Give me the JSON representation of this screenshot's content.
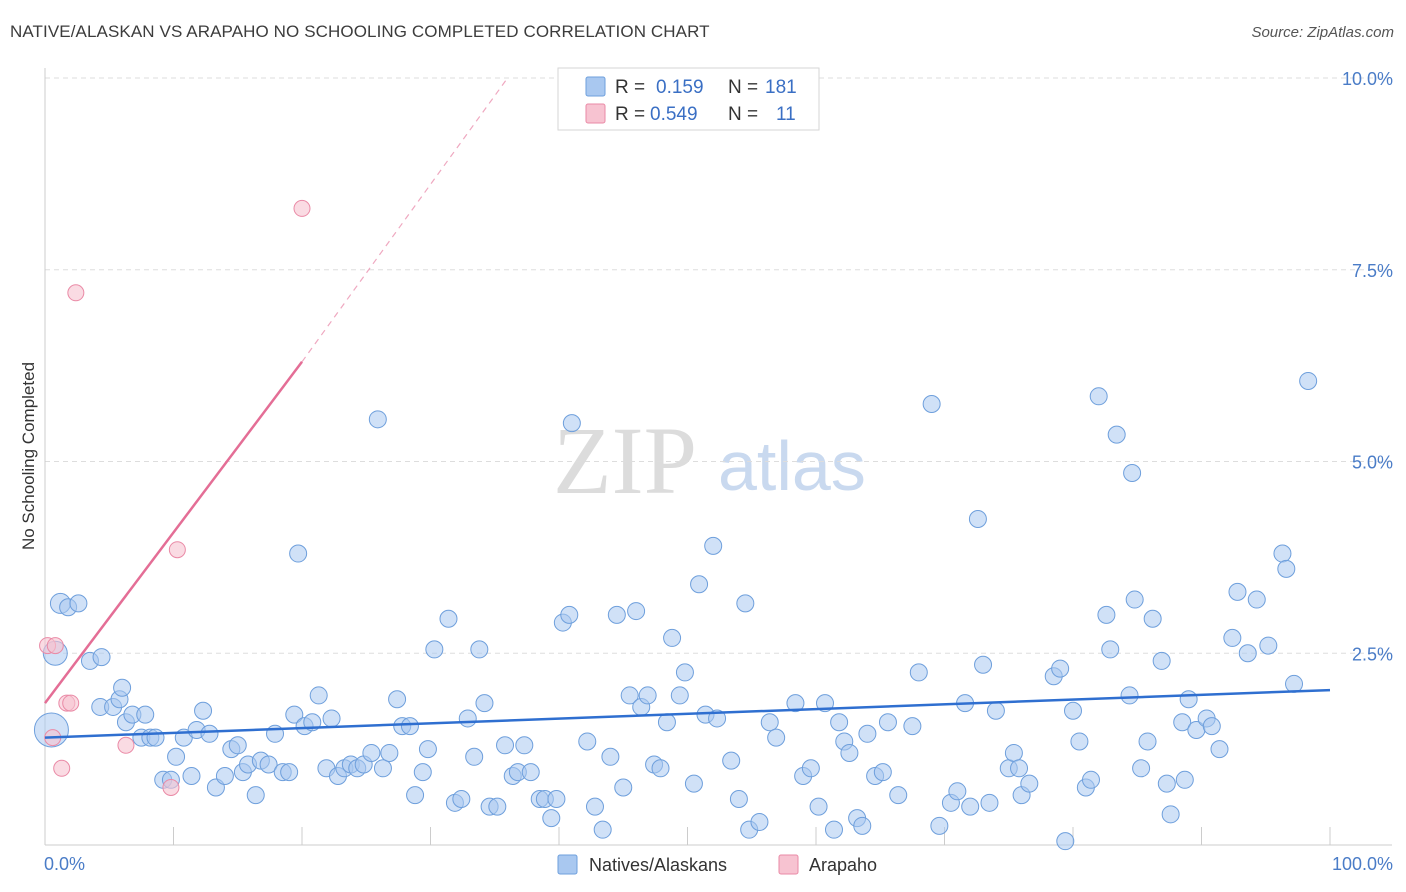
{
  "header": {
    "title": "NATIVE/ALASKAN VS ARAPAHO NO SCHOOLING COMPLETED CORRELATION CHART",
    "source": "Source: ZipAtlas.com"
  },
  "watermark": {
    "zip": "ZIP",
    "atlas": "atlas"
  },
  "legend": {
    "r_label": "R =",
    "n_label": "N =",
    "rows": [
      {
        "r": "0.159",
        "n": "181",
        "color": "#a9c8f0"
      },
      {
        "r": "0.549",
        "n": "11",
        "color": "#f7b9c9"
      }
    ]
  },
  "bottom_legend": [
    {
      "label": "Natives/Alaskans",
      "color": "#a9c8f0"
    },
    {
      "label": "Arapaho",
      "color": "#f7b9c9"
    }
  ],
  "colors": {
    "blue_fill": "#a9c8f0",
    "blue_stroke": "#6e9fdc",
    "blue_line": "#2f6fd0",
    "pink_fill": "#f7c3d1",
    "pink_stroke": "#ea8aa6",
    "pink_line": "#e46e96",
    "grid": "#dddddd",
    "tick_text": "#4a7cc7"
  },
  "chart_data": {
    "type": "scatter",
    "title": "NATIVE/ALASKAN VS ARAPAHO NO SCHOOLING COMPLETED CORRELATION CHART",
    "xlabel": "",
    "ylabel": "No Schooling Completed",
    "xlim": [
      0,
      100
    ],
    "ylim": [
      0,
      10
    ],
    "x_tick_labels": [
      "0.0%",
      "100.0%"
    ],
    "y_ticks": [
      2.5,
      5.0,
      7.5,
      10.0
    ],
    "y_tick_labels": [
      "2.5%",
      "5.0%",
      "7.5%",
      "10.0%"
    ],
    "grid": true,
    "series": [
      {
        "name": "Natives/Alaskans",
        "R": 0.159,
        "N": 181,
        "trend": {
          "x": [
            0,
            100
          ],
          "y": [
            1.4,
            2.02
          ]
        },
        "points": [
          [
            0.5,
            1.5
          ],
          [
            0.8,
            2.5
          ],
          [
            1.2,
            3.15
          ],
          [
            1.8,
            3.1
          ],
          [
            2.6,
            3.15
          ],
          [
            3.5,
            2.4
          ],
          [
            4.4,
            2.45
          ],
          [
            4.3,
            1.8
          ],
          [
            5.3,
            1.8
          ],
          [
            5.8,
            1.9
          ],
          [
            6.0,
            2.05
          ],
          [
            6.3,
            1.6
          ],
          [
            6.8,
            1.7
          ],
          [
            7.5,
            1.4
          ],
          [
            7.8,
            1.7
          ],
          [
            8.2,
            1.4
          ],
          [
            8.6,
            1.4
          ],
          [
            9.2,
            0.85
          ],
          [
            9.8,
            0.85
          ],
          [
            10.2,
            1.15
          ],
          [
            10.8,
            1.4
          ],
          [
            11.4,
            0.9
          ],
          [
            11.8,
            1.5
          ],
          [
            12.3,
            1.75
          ],
          [
            12.8,
            1.45
          ],
          [
            13.3,
            0.75
          ],
          [
            14.0,
            0.9
          ],
          [
            14.5,
            1.25
          ],
          [
            15.0,
            1.3
          ],
          [
            15.4,
            0.95
          ],
          [
            15.8,
            1.05
          ],
          [
            16.4,
            0.65
          ],
          [
            16.8,
            1.1
          ],
          [
            17.4,
            1.05
          ],
          [
            17.9,
            1.45
          ],
          [
            18.5,
            0.95
          ],
          [
            19.0,
            0.95
          ],
          [
            19.4,
            1.7
          ],
          [
            19.7,
            3.8
          ],
          [
            20.2,
            1.55
          ],
          [
            20.8,
            1.6
          ],
          [
            21.3,
            1.95
          ],
          [
            21.9,
            1.0
          ],
          [
            22.3,
            1.65
          ],
          [
            22.8,
            0.9
          ],
          [
            23.3,
            1.0
          ],
          [
            23.8,
            1.05
          ],
          [
            24.3,
            1.0
          ],
          [
            24.8,
            1.05
          ],
          [
            25.4,
            1.2
          ],
          [
            25.9,
            5.55
          ],
          [
            26.3,
            1.0
          ],
          [
            26.8,
            1.2
          ],
          [
            27.4,
            1.9
          ],
          [
            27.8,
            1.55
          ],
          [
            28.4,
            1.55
          ],
          [
            28.8,
            0.65
          ],
          [
            29.4,
            0.95
          ],
          [
            29.8,
            1.25
          ],
          [
            30.3,
            2.55
          ],
          [
            31.4,
            2.95
          ],
          [
            31.9,
            0.55
          ],
          [
            32.4,
            0.6
          ],
          [
            32.9,
            1.65
          ],
          [
            33.4,
            1.15
          ],
          [
            33.8,
            2.55
          ],
          [
            34.2,
            1.85
          ],
          [
            34.6,
            0.5
          ],
          [
            35.2,
            0.5
          ],
          [
            35.8,
            1.3
          ],
          [
            36.4,
            0.9
          ],
          [
            36.8,
            0.95
          ],
          [
            37.3,
            1.3
          ],
          [
            37.8,
            0.95
          ],
          [
            38.5,
            0.6
          ],
          [
            38.9,
            0.6
          ],
          [
            39.4,
            0.35
          ],
          [
            39.8,
            0.6
          ],
          [
            40.3,
            2.9
          ],
          [
            40.8,
            3.0
          ],
          [
            41.0,
            5.5
          ],
          [
            42.2,
            1.35
          ],
          [
            42.8,
            0.5
          ],
          [
            43.4,
            0.2
          ],
          [
            44.0,
            1.15
          ],
          [
            44.5,
            3.0
          ],
          [
            45.0,
            0.75
          ],
          [
            45.5,
            1.95
          ],
          [
            46.0,
            3.05
          ],
          [
            46.4,
            1.8
          ],
          [
            46.9,
            1.95
          ],
          [
            47.4,
            1.05
          ],
          [
            47.9,
            1.0
          ],
          [
            48.4,
            1.6
          ],
          [
            48.8,
            2.7
          ],
          [
            49.4,
            1.95
          ],
          [
            49.8,
            2.25
          ],
          [
            50.5,
            0.8
          ],
          [
            50.9,
            3.4
          ],
          [
            51.4,
            1.7
          ],
          [
            52.0,
            3.9
          ],
          [
            52.3,
            1.65
          ],
          [
            53.4,
            1.1
          ],
          [
            54.0,
            0.6
          ],
          [
            54.5,
            3.15
          ],
          [
            54.8,
            0.2
          ],
          [
            55.6,
            0.3
          ],
          [
            56.4,
            1.6
          ],
          [
            56.9,
            1.4
          ],
          [
            58.4,
            1.85
          ],
          [
            59.0,
            0.9
          ],
          [
            59.6,
            1.0
          ],
          [
            60.2,
            0.5
          ],
          [
            60.7,
            1.85
          ],
          [
            61.4,
            0.2
          ],
          [
            61.8,
            1.6
          ],
          [
            62.2,
            1.35
          ],
          [
            62.6,
            1.2
          ],
          [
            63.2,
            0.35
          ],
          [
            63.6,
            0.25
          ],
          [
            64.0,
            1.45
          ],
          [
            64.6,
            0.9
          ],
          [
            65.2,
            0.95
          ],
          [
            65.6,
            1.6
          ],
          [
            66.4,
            0.65
          ],
          [
            67.5,
            1.55
          ],
          [
            68.0,
            2.25
          ],
          [
            69.0,
            5.75
          ],
          [
            69.6,
            0.25
          ],
          [
            70.5,
            0.55
          ],
          [
            71.0,
            0.7
          ],
          [
            71.6,
            1.85
          ],
          [
            72.0,
            0.5
          ],
          [
            72.6,
            4.25
          ],
          [
            73.0,
            2.35
          ],
          [
            73.5,
            0.55
          ],
          [
            74.0,
            1.75
          ],
          [
            75.0,
            1.0
          ],
          [
            75.4,
            1.2
          ],
          [
            75.8,
            1.0
          ],
          [
            76.0,
            0.65
          ],
          [
            76.6,
            0.8
          ],
          [
            78.5,
            2.2
          ],
          [
            79.0,
            2.3
          ],
          [
            79.4,
            0.05
          ],
          [
            80.0,
            1.75
          ],
          [
            80.5,
            1.35
          ],
          [
            81.0,
            0.75
          ],
          [
            81.4,
            0.85
          ],
          [
            82.0,
            5.85
          ],
          [
            82.6,
            3.0
          ],
          [
            82.9,
            2.55
          ],
          [
            83.4,
            5.35
          ],
          [
            84.4,
            1.95
          ],
          [
            84.6,
            4.85
          ],
          [
            84.8,
            3.2
          ],
          [
            85.3,
            1.0
          ],
          [
            85.8,
            1.35
          ],
          [
            86.2,
            2.95
          ],
          [
            86.9,
            2.4
          ],
          [
            87.3,
            0.8
          ],
          [
            87.6,
            0.4
          ],
          [
            88.5,
            1.6
          ],
          [
            88.7,
            0.85
          ],
          [
            89.0,
            1.9
          ],
          [
            89.6,
            1.5
          ],
          [
            90.4,
            1.65
          ],
          [
            90.8,
            1.55
          ],
          [
            91.4,
            1.25
          ],
          [
            92.4,
            2.7
          ],
          [
            92.8,
            3.3
          ],
          [
            93.6,
            2.5
          ],
          [
            94.3,
            3.2
          ],
          [
            95.2,
            2.6
          ],
          [
            96.3,
            3.8
          ],
          [
            96.6,
            3.6
          ],
          [
            97.2,
            2.1
          ],
          [
            98.3,
            6.05
          ]
        ]
      },
      {
        "name": "Arapaho",
        "R": 0.549,
        "N": 11,
        "trend": {
          "x": [
            0,
            20
          ],
          "y": [
            1.85,
            6.3
          ],
          "dashed_to": {
            "x": 36,
            "y": 10.0
          }
        },
        "points": [
          [
            0.2,
            2.6
          ],
          [
            0.6,
            1.4
          ],
          [
            0.8,
            2.6
          ],
          [
            1.3,
            1.0
          ],
          [
            1.7,
            1.85
          ],
          [
            2.0,
            1.85
          ],
          [
            2.4,
            7.2
          ],
          [
            6.3,
            1.3
          ],
          [
            9.8,
            0.75
          ],
          [
            10.3,
            3.85
          ],
          [
            20.0,
            8.3
          ]
        ]
      }
    ]
  }
}
